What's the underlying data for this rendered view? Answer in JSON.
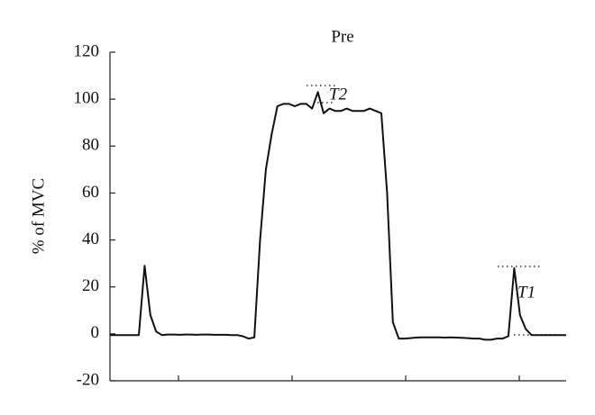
{
  "chart_data": {
    "type": "line",
    "title": "Pre",
    "y_label": "% of MVC",
    "annotations": [
      "T2",
      "T1"
    ],
    "series": [
      {
        "color": "#111111",
        "values": [
          -0.5,
          -0.5,
          -0.5,
          -0.5,
          -0.5,
          -0.5,
          29,
          8,
          1,
          -0.5,
          -0.3,
          -0.3,
          -0.4,
          -0.3,
          -0.3,
          -0.4,
          -0.3,
          -0.3,
          -0.4,
          -0.4,
          -0.4,
          -0.5,
          -0.5,
          -1,
          -2,
          -1.5,
          40,
          70,
          85,
          97,
          98,
          98,
          97,
          98,
          98,
          96,
          103,
          94,
          96,
          95,
          95,
          96,
          95,
          95,
          95,
          96,
          95,
          94,
          60,
          5,
          -2,
          -2,
          -1.8,
          -1.6,
          -1.5,
          -1.5,
          -1.5,
          -1.5,
          -1.6,
          -1.5,
          -1.6,
          -1.7,
          -1.8,
          -2,
          -2,
          -2.5,
          -2.5,
          -2,
          -2,
          -1,
          28,
          8,
          2,
          -0.5,
          -0.5,
          -0.5,
          -0.5,
          -0.5,
          -0.5,
          -0.5
        ]
      }
    ],
    "ylim": [
      -20,
      120
    ],
    "yticks": [
      -20,
      0,
      20,
      40,
      60,
      80,
      100,
      120
    ]
  }
}
